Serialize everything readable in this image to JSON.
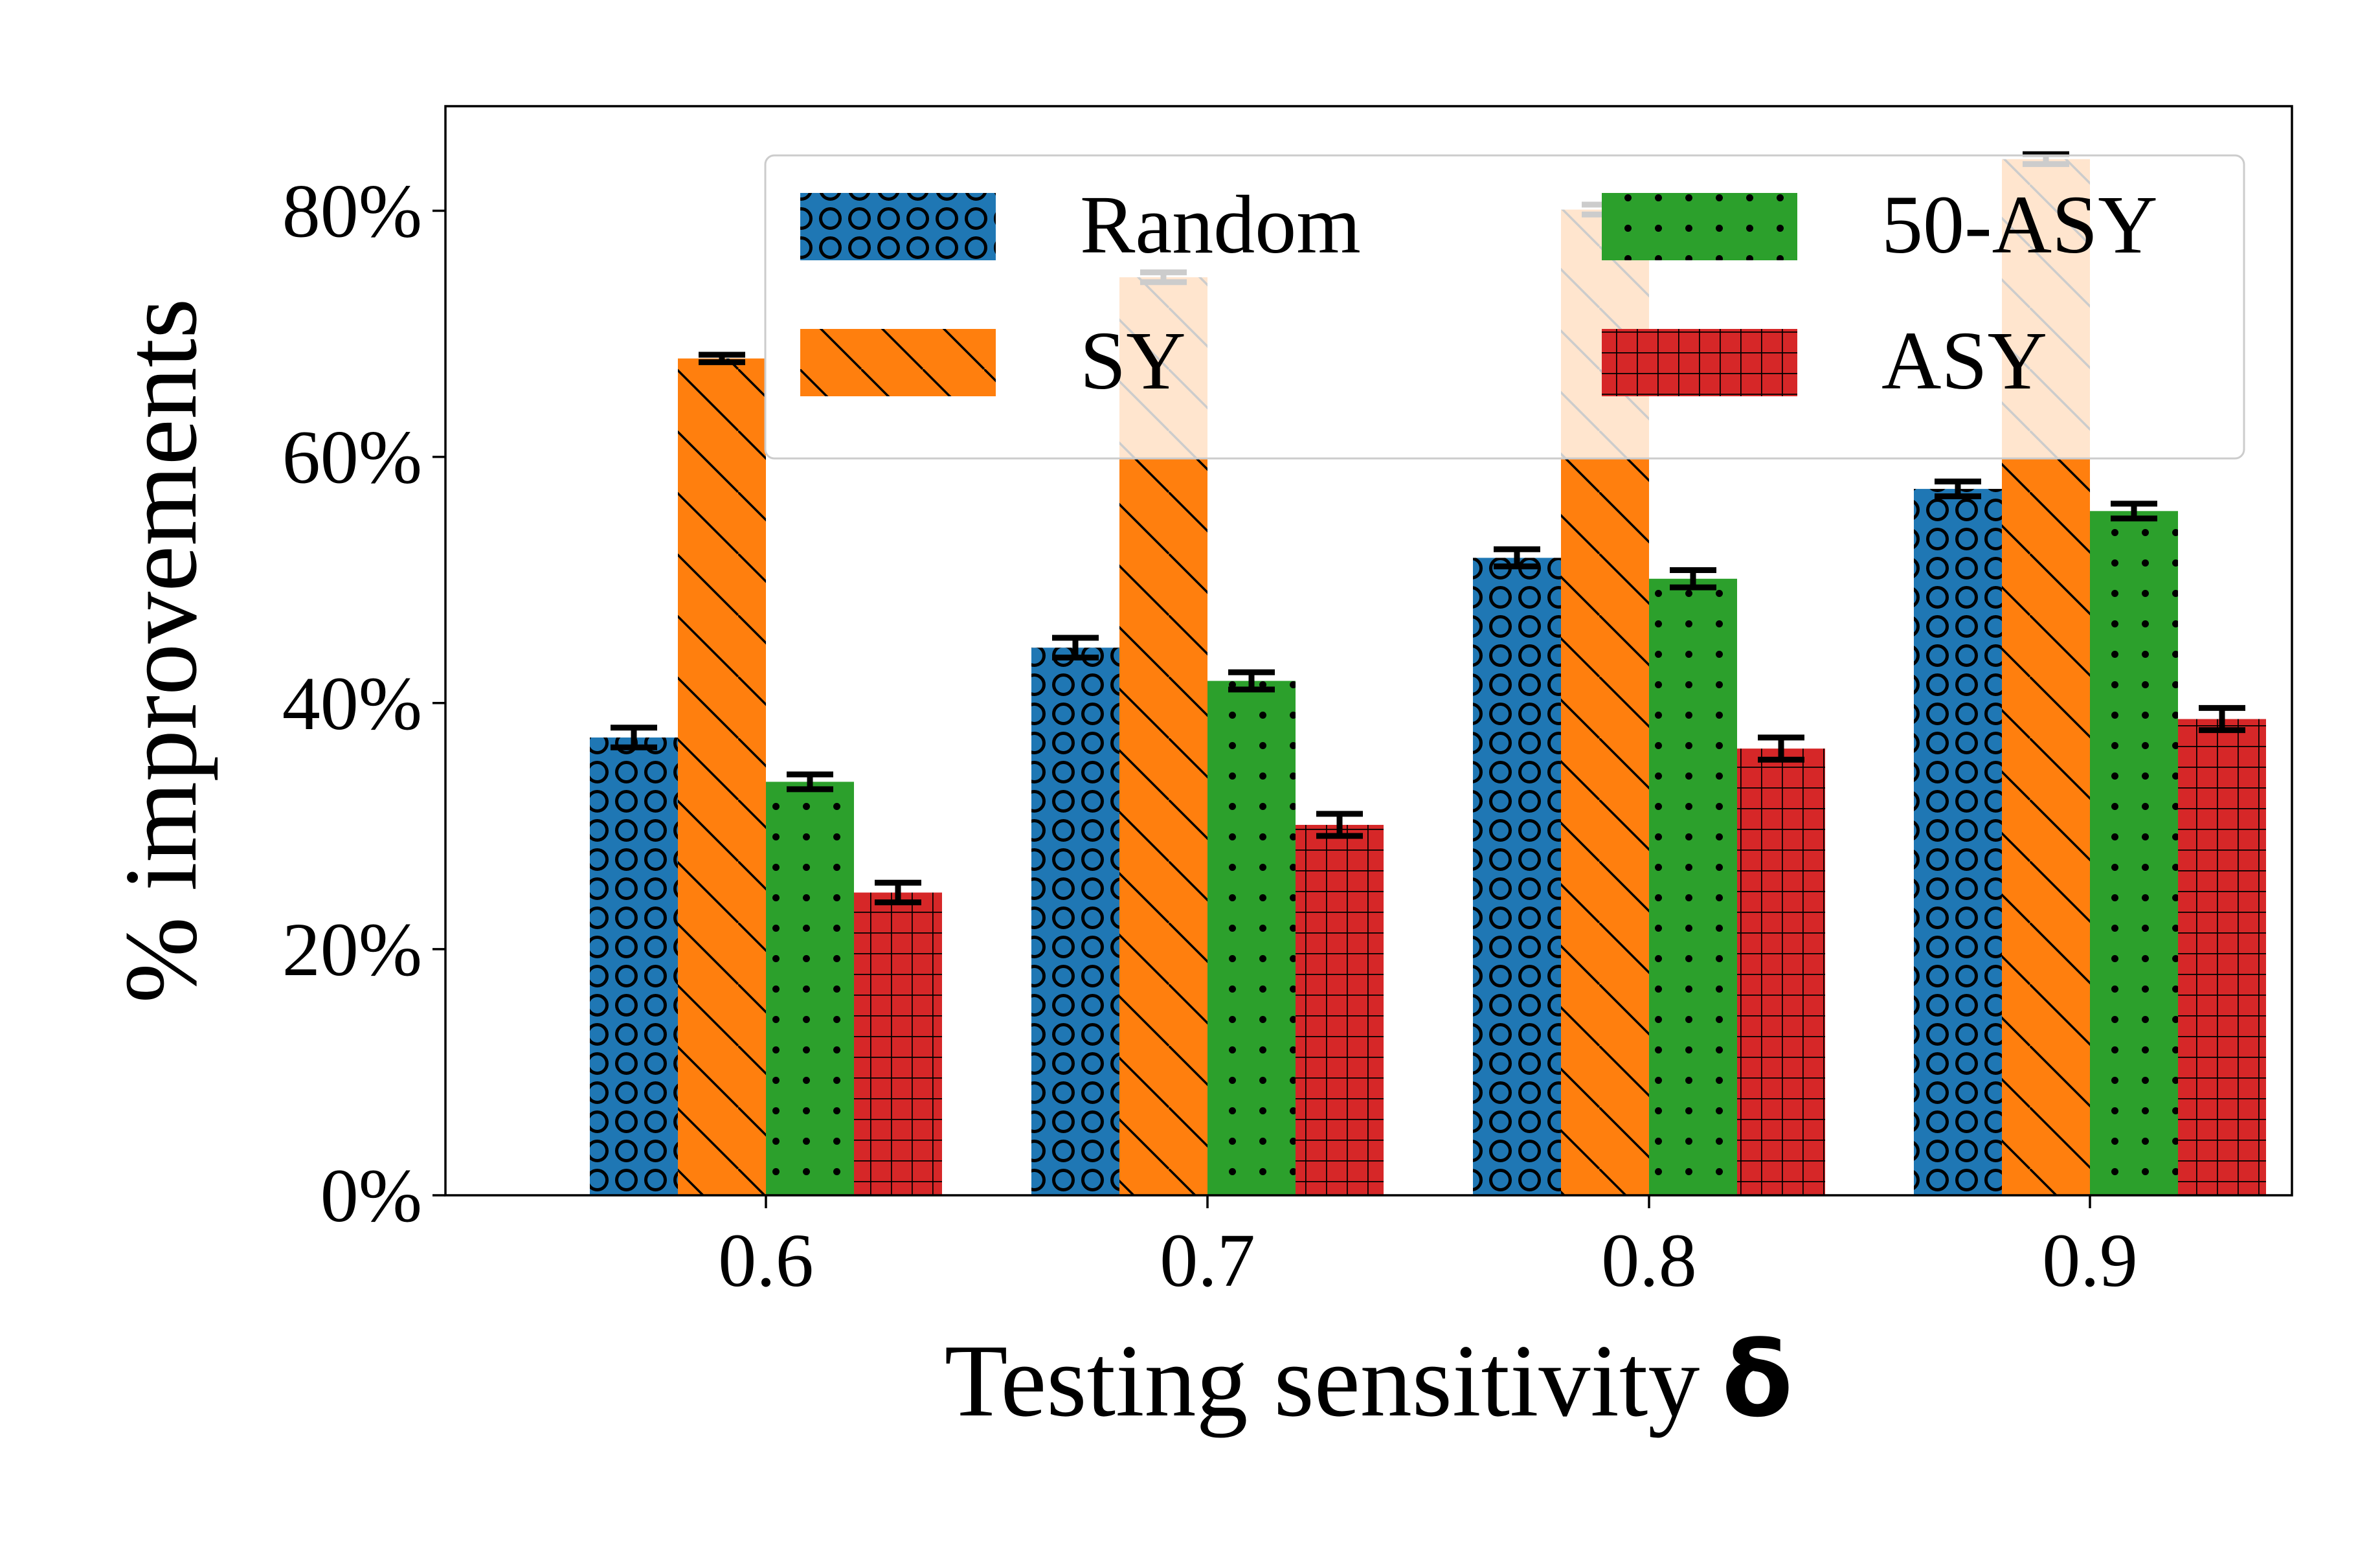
{
  "chart_data": {
    "type": "bar",
    "categories": [
      "0.6",
      "0.7",
      "0.8",
      "0.9"
    ],
    "series": [
      {
        "name": "Random",
        "values": [
          37.2,
          44.5,
          51.8,
          57.4
        ],
        "errors": [
          0.8,
          0.8,
          0.7,
          0.6
        ],
        "color": "#1f77b4",
        "pattern": "circles"
      },
      {
        "name": "SY",
        "values": [
          68.0,
          74.6,
          80.1,
          84.2
        ],
        "errors": [
          0.3,
          0.4,
          0.4,
          0.4
        ],
        "color": "#ff7f0e",
        "pattern": "diagonal"
      },
      {
        "name": "50-ASY",
        "values": [
          33.6,
          41.8,
          50.1,
          55.6
        ],
        "errors": [
          0.6,
          0.7,
          0.7,
          0.6
        ],
        "color": "#2ca02c",
        "pattern": "dots"
      },
      {
        "name": "ASY",
        "values": [
          24.6,
          30.1,
          36.3,
          38.7
        ],
        "errors": [
          0.8,
          0.9,
          0.9,
          0.9
        ],
        "color": "#d62728",
        "pattern": "grid"
      }
    ],
    "xlabel": "Testing sensitivity",
    "xlabel_symbol": "δ",
    "ylabel": "% improvements",
    "yticks": [
      "0%",
      "20%",
      "40%",
      "60%",
      "80%"
    ],
    "ylim": [
      0,
      88.5
    ],
    "legend_position": "upper-right",
    "grid": false
  }
}
